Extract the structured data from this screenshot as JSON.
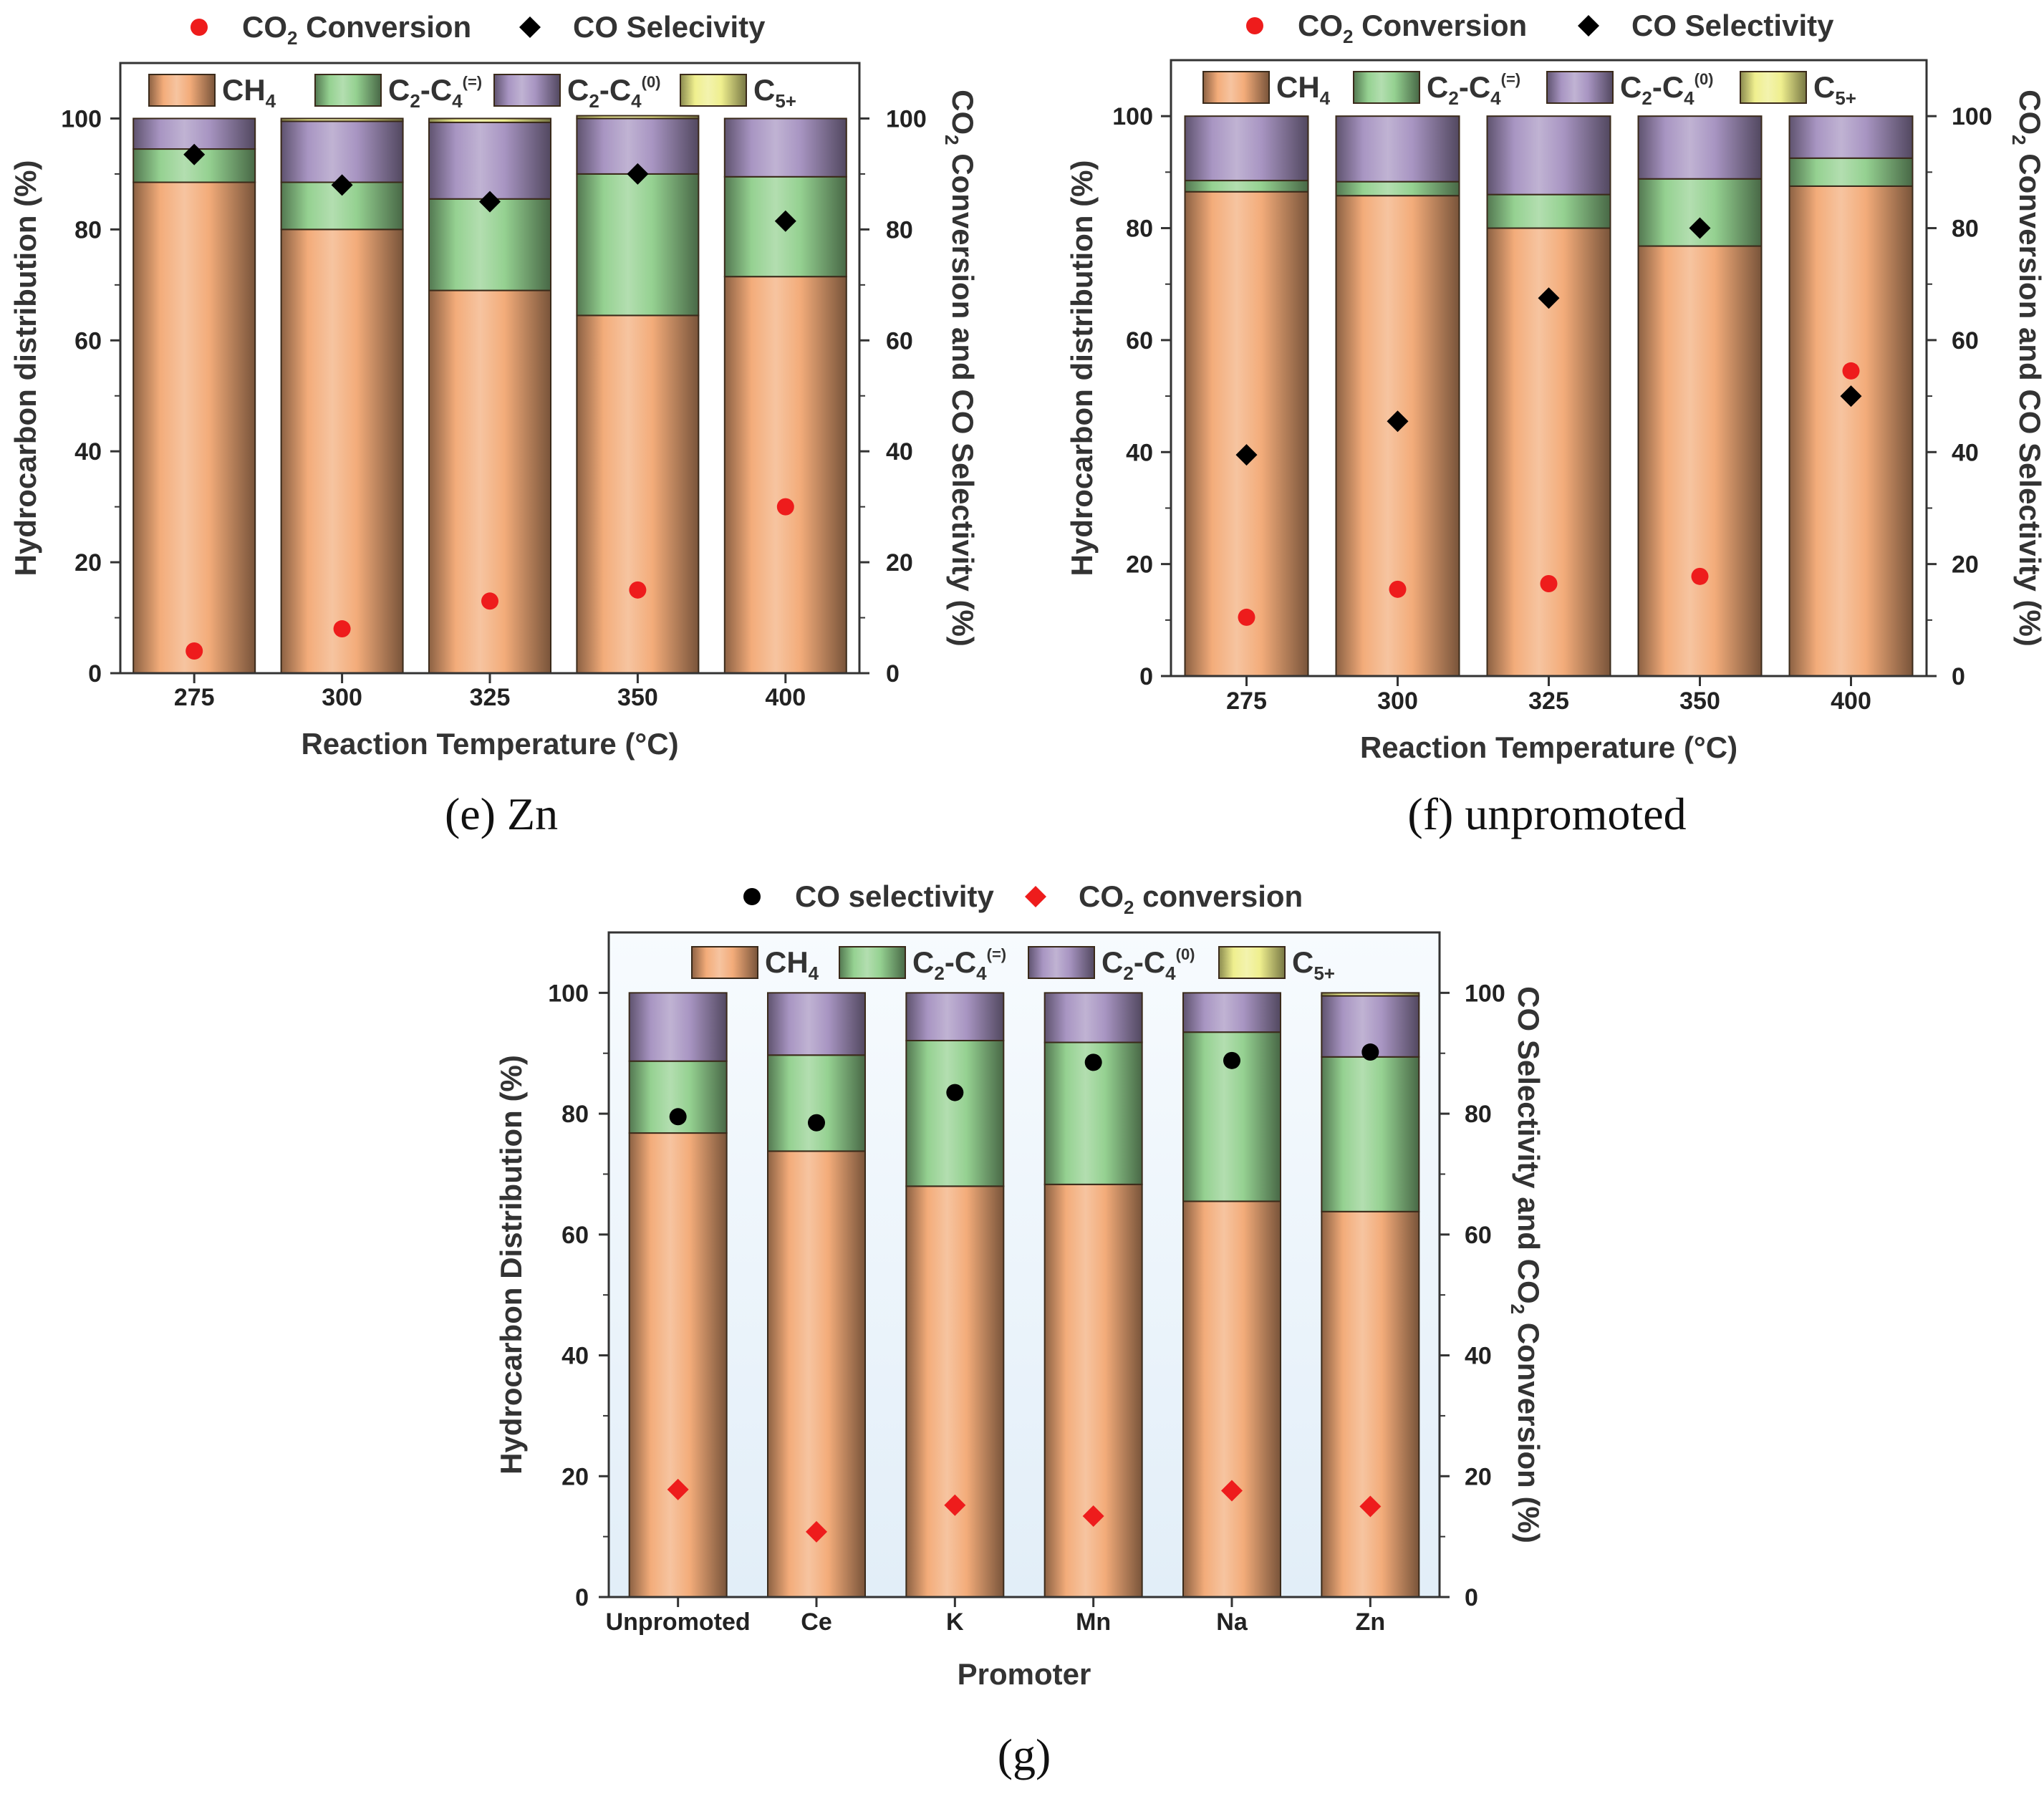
{
  "colors": {
    "ch4": "#f2a873",
    "c2c4_olefin": "#8fcf8b",
    "c2c4_paraffin": "#a38fbf",
    "c5plus": "#eeee88",
    "co2_marker": "#ee1c1c",
    "co_marker": "#000000",
    "panel_g_bg": "#e2eef8"
  },
  "legend_symbols": {
    "c2c4_olefin_sup": "(=)",
    "c2c4_paraffin_sup": "(0)"
  },
  "chart_data": [
    {
      "type": "bar",
      "panel": "e",
      "caption_letter": "(e)",
      "caption_text": "Zn",
      "xlabel": "Reaction Temperature (°C)",
      "ylabel": "Hydrocarbon distribution (%)",
      "ylabel2": "CO2 Conversion and CO Selectivity (%)",
      "ylim": [
        0,
        110
      ],
      "yticks": [
        "0",
        "20",
        "40",
        "60",
        "80",
        "100"
      ],
      "categories": [
        "275",
        "300",
        "325",
        "350",
        "400"
      ],
      "series": [
        {
          "name": "CH4",
          "values": [
            88.5,
            80,
            69,
            64.5,
            71.5
          ]
        },
        {
          "name": "C2-C4(=)",
          "values": [
            6,
            8.5,
            16.5,
            25.5,
            18
          ]
        },
        {
          "name": "C2-C4(0)",
          "values": [
            5.5,
            11,
            13.8,
            10,
            10.5
          ]
        },
        {
          "name": "C5+",
          "values": [
            0,
            0.5,
            0.7,
            0.5,
            0
          ]
        }
      ],
      "markers": [
        {
          "name": "CO2 Conversion",
          "values": [
            4,
            8,
            13,
            15,
            30
          ]
        },
        {
          "name": "CO Selecivity",
          "values": [
            93.5,
            88,
            85,
            90,
            81.5
          ]
        }
      ]
    },
    {
      "type": "bar",
      "panel": "f",
      "caption_letter": "(f)",
      "caption_text": "unpromoted",
      "xlabel": "Reaction Temperature (°C)",
      "ylabel": "Hydrocarbon distribution (%)",
      "ylabel2": "CO2 Conversion and CO Selectivity (%)",
      "ylim": [
        0,
        110
      ],
      "yticks": [
        "0",
        "20",
        "40",
        "60",
        "80",
        "100"
      ],
      "categories": [
        "275",
        "300",
        "325",
        "350",
        "400"
      ],
      "series": [
        {
          "name": "CH4",
          "values": [
            86.5,
            85.8,
            80,
            76.8,
            87.5
          ]
        },
        {
          "name": "C2-C4(=)",
          "values": [
            2,
            2.5,
            6,
            12,
            5
          ]
        },
        {
          "name": "C2-C4(0)",
          "values": [
            11.5,
            11.7,
            14,
            11.2,
            7.5
          ]
        },
        {
          "name": "C5+",
          "values": [
            0,
            0,
            0,
            0,
            0
          ]
        }
      ],
      "markers": [
        {
          "name": "CO2 Conversion",
          "values": [
            10.5,
            15.5,
            16.5,
            17.8,
            54.5
          ]
        },
        {
          "name": "CO Selectivity",
          "values": [
            39.5,
            45.5,
            67.5,
            80,
            50
          ]
        }
      ]
    },
    {
      "type": "bar",
      "panel": "g",
      "caption_letter": "(g)",
      "xlabel": "Promoter",
      "ylabel": "Hydrocarbon Distribution (%)",
      "ylabel2": "CO Selectivity and CO2 Conversion (%)",
      "ylim": [
        0,
        110
      ],
      "yticks": [
        "0",
        "20",
        "40",
        "60",
        "80",
        "100"
      ],
      "categories": [
        "Unpromoted",
        "Ce",
        "K",
        "Mn",
        "Na",
        "Zn"
      ],
      "series": [
        {
          "name": "CH4",
          "values": [
            76.8,
            73.8,
            68,
            68.3,
            65.5,
            63.8
          ]
        },
        {
          "name": "C2-C4(=)",
          "values": [
            11.9,
            15.9,
            24.1,
            23.5,
            28,
            25.6
          ]
        },
        {
          "name": "C2-C4(0)",
          "values": [
            11.3,
            10.3,
            7.9,
            8.2,
            6.5,
            10.1
          ]
        },
        {
          "name": "C5+",
          "values": [
            0,
            0,
            0,
            0,
            0,
            0.5
          ]
        }
      ],
      "markers": [
        {
          "name": "CO selectivity",
          "values": [
            79.5,
            78.5,
            83.5,
            88.5,
            88.8,
            90.2
          ]
        },
        {
          "name": "CO2 conversion",
          "values": [
            17.8,
            10.8,
            15.2,
            13.4,
            17.6,
            15
          ]
        }
      ]
    }
  ]
}
